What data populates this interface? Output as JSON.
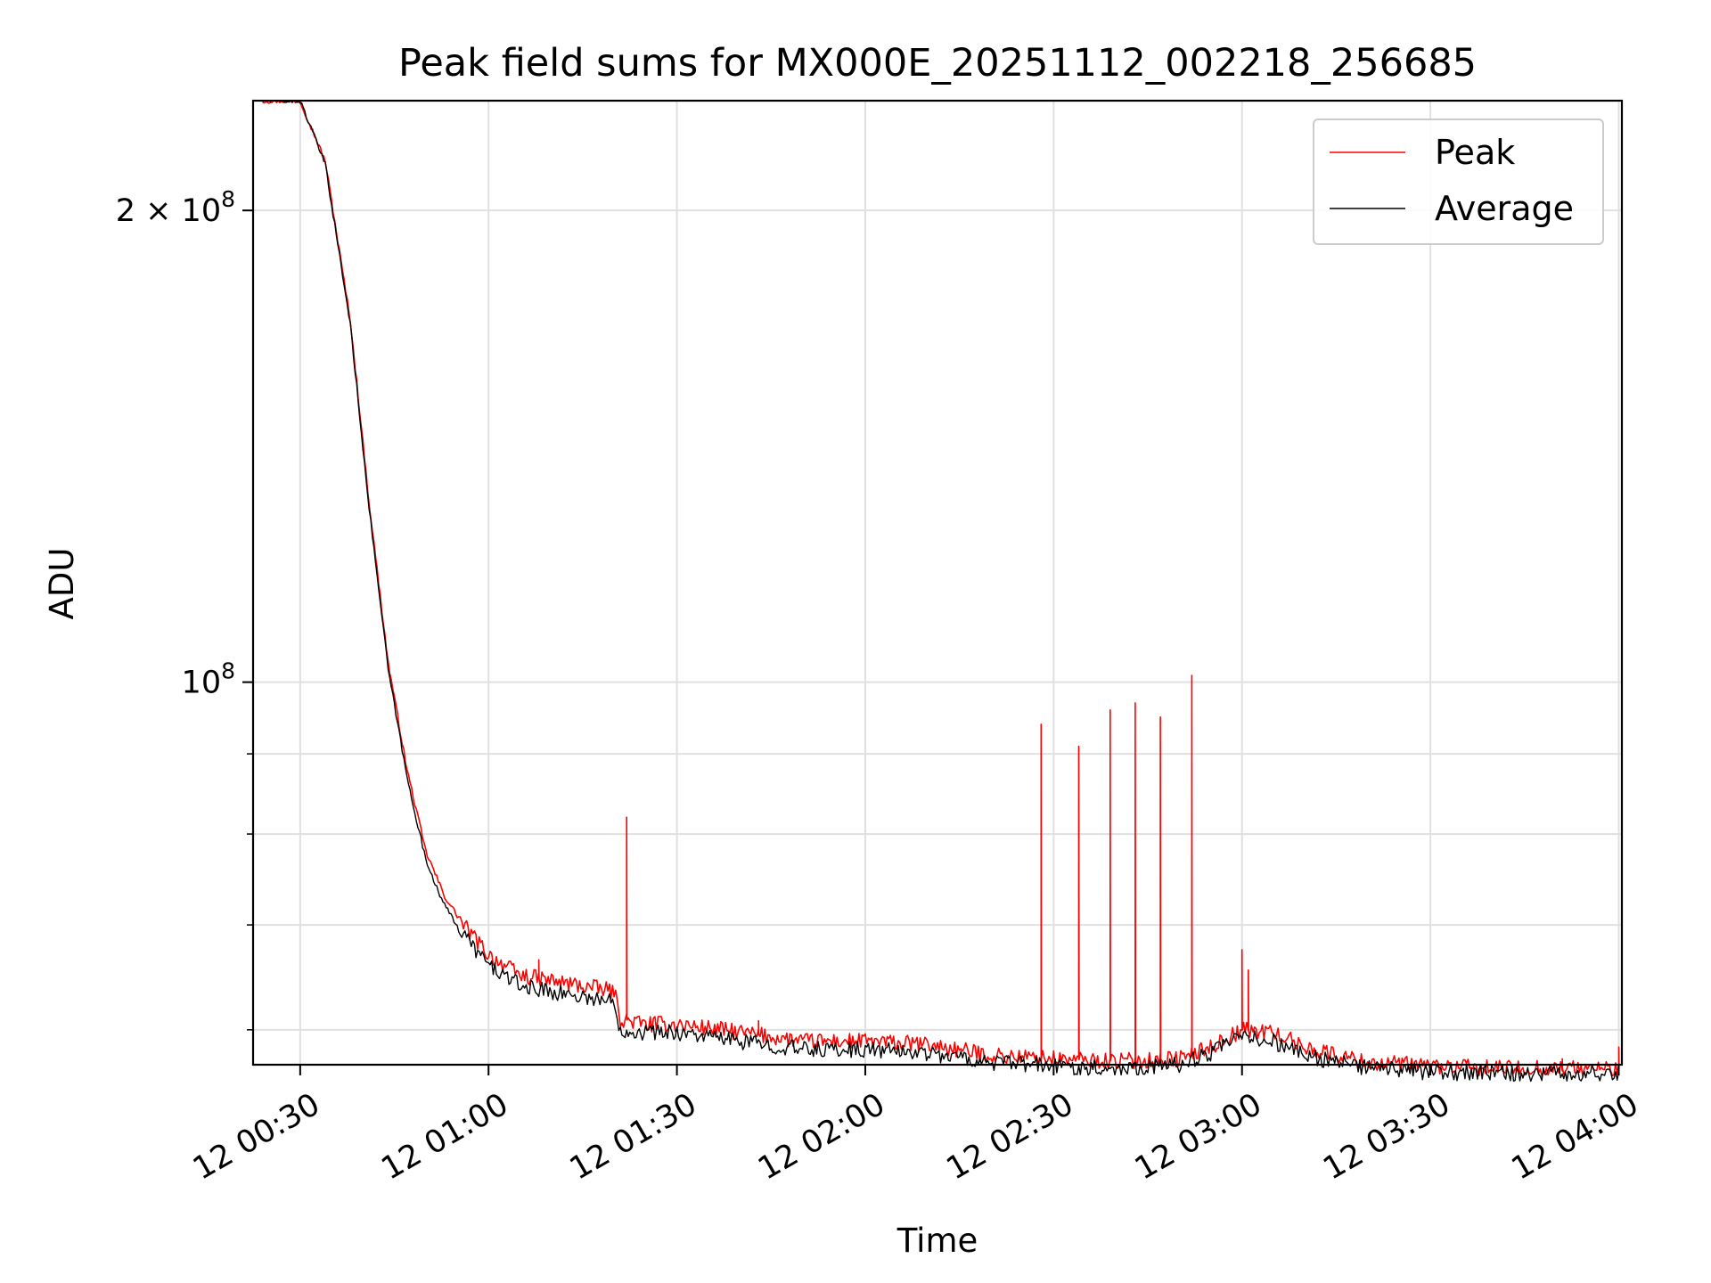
{
  "chart_data": {
    "type": "line",
    "title": "Peak field sums for MX000E_20251112_002218_256685",
    "xlabel": "Time",
    "ylabel": "ADU",
    "y_scale": "log",
    "ylim": [
      57000000,
      235000000
    ],
    "xlim": [
      "2025-11-12 00:22:30",
      "2025-11-12 04:00:30"
    ],
    "grid": true,
    "legend_position": "top-right",
    "x_ticks": [
      {
        "t": "2025-11-12 00:30",
        "label": "12 00:30"
      },
      {
        "t": "2025-11-12 01:00",
        "label": "12 01:00"
      },
      {
        "t": "2025-11-12 01:30",
        "label": "12 01:30"
      },
      {
        "t": "2025-11-12 02:00",
        "label": "12 02:00"
      },
      {
        "t": "2025-11-12 02:30",
        "label": "12 02:30"
      },
      {
        "t": "2025-11-12 03:00",
        "label": "12 03:00"
      },
      {
        "t": "2025-11-12 03:30",
        "label": "12 03:30"
      },
      {
        "t": "2025-11-12 04:00",
        "label": "12 04:00"
      }
    ],
    "y_major_ticks": [
      {
        "value": 100000000,
        "mantissa": "",
        "base": "10",
        "exponent": "8"
      },
      {
        "value": 200000000,
        "mantissa": "2",
        "base": "10",
        "exponent": "8"
      }
    ],
    "y_minor_gridlines": [
      60000000,
      70000000,
      80000000,
      90000000
    ],
    "series": [
      {
        "name": "Peak",
        "color": "#ff0000",
        "x": [
          "2025-11-12 00:24",
          "2025-11-12 00:30",
          "2025-11-12 00:34",
          "2025-11-12 00:38",
          "2025-11-12 00:41",
          "2025-11-12 00:44",
          "2025-11-12 00:47",
          "2025-11-12 00:50",
          "2025-11-12 00:53",
          "2025-11-12 00:56",
          "2025-11-12 01:00",
          "2025-11-12 01:05",
          "2025-11-12 01:10",
          "2025-11-12 01:15",
          "2025-11-12 01:20",
          "2025-11-12 01:21",
          "2025-11-12 01:25",
          "2025-11-12 01:30",
          "2025-11-12 01:40",
          "2025-11-12 01:50",
          "2025-11-12 02:00",
          "2025-11-12 02:10",
          "2025-11-12 02:20",
          "2025-11-12 02:30",
          "2025-11-12 02:40",
          "2025-11-12 02:50",
          "2025-11-12 02:55",
          "2025-11-12 03:00",
          "2025-11-12 03:05",
          "2025-11-12 03:10",
          "2025-11-12 03:20",
          "2025-11-12 03:30",
          "2025-11-12 03:40",
          "2025-11-12 03:50",
          "2025-11-12 04:00"
        ],
        "y": [
          235000000,
          235000000,
          215000000,
          170000000,
          130000000,
          103000000,
          88000000,
          78000000,
          73000000,
          70000000,
          67000000,
          65000000,
          64500000,
          64000000,
          63500000,
          61000000,
          60500000,
          60500000,
          59800000,
          59000000,
          59000000,
          58700000,
          57800000,
          57500000,
          57300000,
          57500000,
          58500000,
          60000000,
          59800000,
          58500000,
          57200000,
          56900000,
          56700000,
          56700000,
          56700000
        ],
        "spikes": [
          {
            "t": "2025-11-12 01:08",
            "value": 66500000
          },
          {
            "t": "2025-11-12 01:22",
            "value": 82000000
          },
          {
            "t": "2025-11-12 01:43",
            "value": 60800000
          },
          {
            "t": "2025-11-12 02:28",
            "value": 94000000
          },
          {
            "t": "2025-11-12 02:34",
            "value": 91000000
          },
          {
            "t": "2025-11-12 02:39",
            "value": 96000000
          },
          {
            "t": "2025-11-12 02:43",
            "value": 97000000
          },
          {
            "t": "2025-11-12 02:47",
            "value": 95000000
          },
          {
            "t": "2025-11-12 02:52",
            "value": 101000000
          },
          {
            "t": "2025-11-12 03:00",
            "value": 67500000
          },
          {
            "t": "2025-11-12 03:01",
            "value": 65500000
          },
          {
            "t": "2025-11-12 03:51",
            "value": 57500000
          },
          {
            "t": "2025-11-12 04:00",
            "value": 58500000
          }
        ]
      },
      {
        "name": "Average",
        "color": "#000000",
        "x": [
          "2025-11-12 00:24",
          "2025-11-12 00:30",
          "2025-11-12 00:34",
          "2025-11-12 00:38",
          "2025-11-12 00:41",
          "2025-11-12 00:44",
          "2025-11-12 00:47",
          "2025-11-12 00:50",
          "2025-11-12 00:53",
          "2025-11-12 00:56",
          "2025-11-12 01:00",
          "2025-11-12 01:05",
          "2025-11-12 01:10",
          "2025-11-12 01:15",
          "2025-11-12 01:20",
          "2025-11-12 01:21",
          "2025-11-12 01:25",
          "2025-11-12 01:30",
          "2025-11-12 01:40",
          "2025-11-12 01:50",
          "2025-11-12 02:00",
          "2025-11-12 02:10",
          "2025-11-12 02:20",
          "2025-11-12 02:30",
          "2025-11-12 02:40",
          "2025-11-12 02:50",
          "2025-11-12 02:55",
          "2025-11-12 03:00",
          "2025-11-12 03:05",
          "2025-11-12 03:10",
          "2025-11-12 03:20",
          "2025-11-12 03:30",
          "2025-11-12 03:40",
          "2025-11-12 03:50",
          "2025-11-12 04:00"
        ],
        "y": [
          235000000,
          235000000,
          214000000,
          169000000,
          129000000,
          102000000,
          87000000,
          77000000,
          72000000,
          69000000,
          66000000,
          64000000,
          63500000,
          63000000,
          62500000,
          60000000,
          59800000,
          59800000,
          59000000,
          58300000,
          58300000,
          58000000,
          57200000,
          56900000,
          56700000,
          57000000,
          58000000,
          59400000,
          59000000,
          57800000,
          56700000,
          56400000,
          56300000,
          56300000,
          56300000
        ]
      }
    ]
  }
}
